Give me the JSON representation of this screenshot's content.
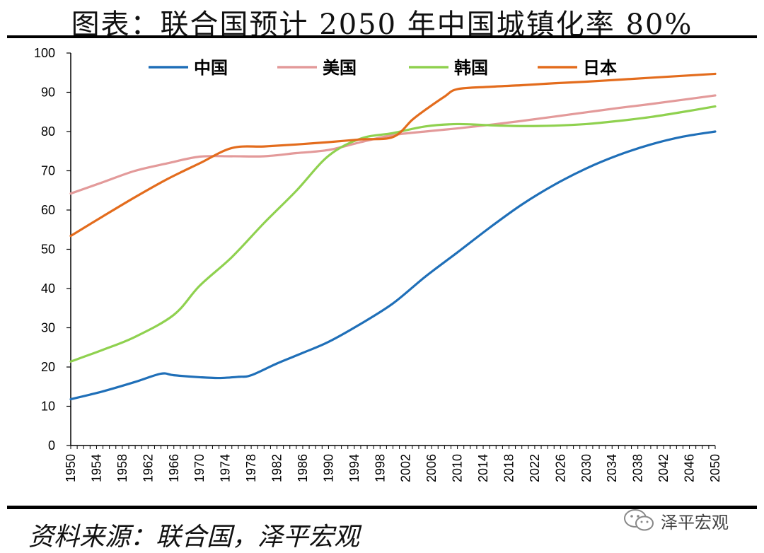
{
  "title": "图表：联合国预计 2050 年中国城镇化率 80%",
  "source": "资料来源：联合国，泽平宏观",
  "brand": {
    "name": "泽平宏观",
    "icon": "wechat-icon"
  },
  "chart_data": {
    "type": "line",
    "title": "图表：联合国预计 2050 年中国城镇化率 80%",
    "xlabel": "",
    "ylabel": "",
    "xlim": [
      1950,
      2050
    ],
    "ylim": [
      0,
      100
    ],
    "yticks": [
      0,
      10,
      20,
      30,
      40,
      50,
      60,
      70,
      80,
      90,
      100
    ],
    "xticks": [
      1950,
      1954,
      1958,
      1962,
      1966,
      1970,
      1974,
      1978,
      1982,
      1986,
      1990,
      1994,
      1998,
      2002,
      2006,
      2010,
      2014,
      2018,
      2022,
      2026,
      2030,
      2034,
      2038,
      2042,
      2046,
      2050
    ],
    "grid": false,
    "legend": "top",
    "series": [
      {
        "name": "中国",
        "color": "#1f6fb8",
        "points": [
          [
            1950,
            11.8
          ],
          [
            1955,
            13.8
          ],
          [
            1960,
            16.2
          ],
          [
            1964,
            18.3
          ],
          [
            1966,
            17.9
          ],
          [
            1970,
            17.4
          ],
          [
            1973,
            17.2
          ],
          [
            1976,
            17.5
          ],
          [
            1978,
            17.9
          ],
          [
            1982,
            20.9
          ],
          [
            1986,
            23.6
          ],
          [
            1990,
            26.4
          ],
          [
            1995,
            31.0
          ],
          [
            2000,
            36.2
          ],
          [
            2005,
            43.0
          ],
          [
            2010,
            49.2
          ],
          [
            2015,
            55.5
          ],
          [
            2020,
            61.4
          ],
          [
            2025,
            66.4
          ],
          [
            2030,
            70.6
          ],
          [
            2035,
            74.0
          ],
          [
            2040,
            76.7
          ],
          [
            2045,
            78.7
          ],
          [
            2050,
            80.0
          ]
        ]
      },
      {
        "name": "美国",
        "color": "#e39a9a",
        "points": [
          [
            1950,
            64.2
          ],
          [
            1955,
            67.1
          ],
          [
            1960,
            70.0
          ],
          [
            1965,
            71.9
          ],
          [
            1970,
            73.6
          ],
          [
            1975,
            73.7
          ],
          [
            1980,
            73.7
          ],
          [
            1985,
            74.5
          ],
          [
            1990,
            75.3
          ],
          [
            1995,
            77.3
          ],
          [
            2000,
            79.1
          ],
          [
            2005,
            80.0
          ],
          [
            2010,
            80.8
          ],
          [
            2015,
            81.7
          ],
          [
            2020,
            82.7
          ],
          [
            2025,
            83.8
          ],
          [
            2030,
            84.9
          ],
          [
            2035,
            86.0
          ],
          [
            2040,
            87.0
          ],
          [
            2045,
            88.1
          ],
          [
            2050,
            89.2
          ]
        ]
      },
      {
        "name": "韩国",
        "color": "#8fd14f",
        "points": [
          [
            1950,
            21.4
          ],
          [
            1955,
            24.4
          ],
          [
            1960,
            27.7
          ],
          [
            1966,
            33.3
          ],
          [
            1970,
            40.7
          ],
          [
            1975,
            48.0
          ],
          [
            1980,
            56.7
          ],
          [
            1985,
            64.9
          ],
          [
            1990,
            73.8
          ],
          [
            1995,
            78.2
          ],
          [
            2000,
            79.6
          ],
          [
            2005,
            81.3
          ],
          [
            2010,
            81.9
          ],
          [
            2015,
            81.6
          ],
          [
            2020,
            81.4
          ],
          [
            2025,
            81.5
          ],
          [
            2030,
            81.9
          ],
          [
            2035,
            82.7
          ],
          [
            2040,
            83.7
          ],
          [
            2045,
            85.0
          ],
          [
            2050,
            86.4
          ]
        ]
      },
      {
        "name": "日本",
        "color": "#e36c1d",
        "points": [
          [
            1950,
            53.4
          ],
          [
            1955,
            58.4
          ],
          [
            1960,
            63.3
          ],
          [
            1965,
            67.9
          ],
          [
            1970,
            71.9
          ],
          [
            1975,
            75.8
          ],
          [
            1980,
            76.2
          ],
          [
            1985,
            76.7
          ],
          [
            1990,
            77.3
          ],
          [
            1995,
            78.0
          ],
          [
            2000,
            78.6
          ],
          [
            2003,
            83.0
          ],
          [
            2005,
            85.5
          ],
          [
            2008,
            88.9
          ],
          [
            2010,
            90.8
          ],
          [
            2015,
            91.4
          ],
          [
            2020,
            91.8
          ],
          [
            2025,
            92.3
          ],
          [
            2030,
            92.7
          ],
          [
            2035,
            93.2
          ],
          [
            2040,
            93.7
          ],
          [
            2045,
            94.2
          ],
          [
            2050,
            94.7
          ]
        ]
      }
    ]
  }
}
